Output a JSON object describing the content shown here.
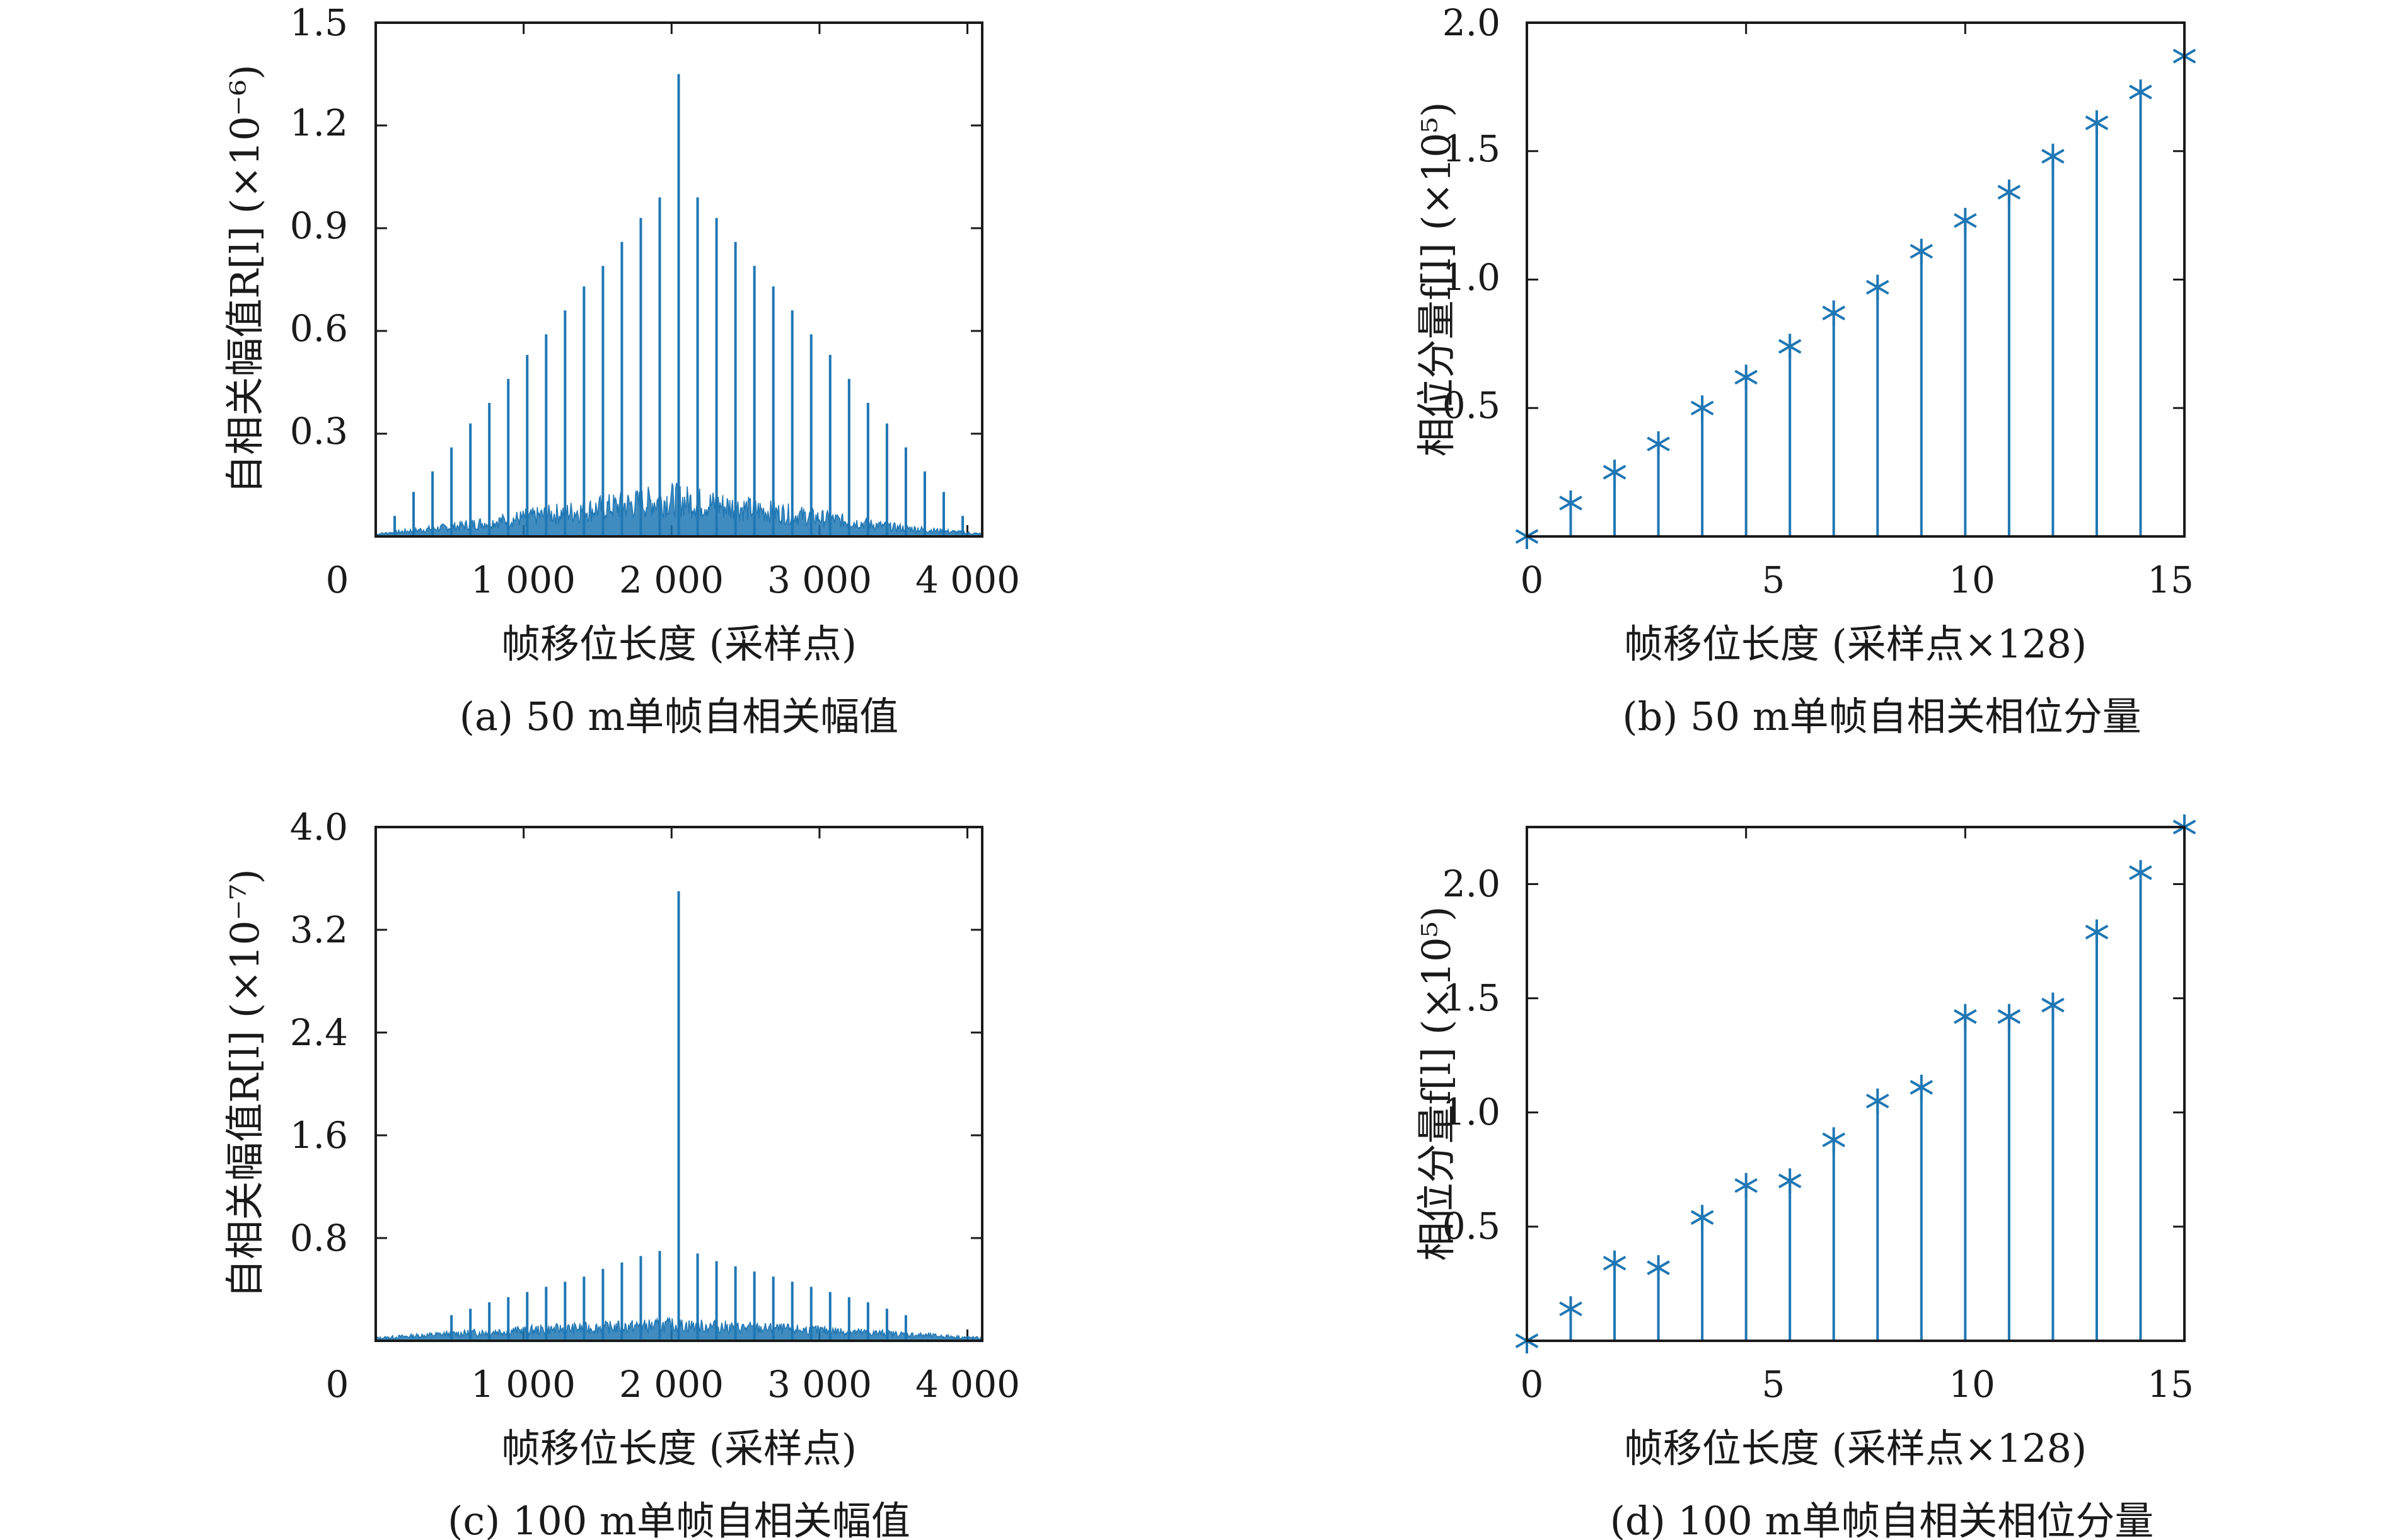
{
  "colors": {
    "series": "#1f77b4",
    "axis": "#1a1a1a"
  },
  "chart_data": [
    {
      "id": "a",
      "type": "stem",
      "caption": "(a) 50 m单帧自相关幅值",
      "xlabel": "帧移位长度 (采样点)",
      "ylabel": "自相关幅值R[l] (×10⁻⁶)",
      "origin_label": "0",
      "xlim": [
        0,
        4100
      ],
      "ylim": [
        0,
        1.5
      ],
      "xticks": [
        1000,
        2000,
        3000,
        4000
      ],
      "xtick_labels": [
        "1 000",
        "2 000",
        "3 000",
        "4 000"
      ],
      "yticks": [
        0.3,
        0.6,
        0.9,
        1.2,
        1.5
      ],
      "ytick_labels": [
        "0.3",
        "0.6",
        "0.9",
        "1.2",
        "1.5"
      ],
      "peaks": {
        "x": [
          128,
          256,
          384,
          512,
          640,
          768,
          896,
          1024,
          1152,
          1280,
          1408,
          1536,
          1664,
          1792,
          1920,
          2048,
          2176,
          2304,
          2432,
          2560,
          2688,
          2816,
          2944,
          3072,
          3200,
          3328,
          3456,
          3584,
          3712,
          3840,
          3968
        ],
        "y": [
          0.06,
          0.13,
          0.19,
          0.26,
          0.33,
          0.39,
          0.46,
          0.53,
          0.59,
          0.66,
          0.73,
          0.79,
          0.86,
          0.93,
          0.99,
          1.35,
          0.99,
          0.93,
          0.86,
          0.79,
          0.73,
          0.66,
          0.59,
          0.53,
          0.46,
          0.39,
          0.33,
          0.26,
          0.19,
          0.13,
          0.06
        ]
      },
      "background_envelope": {
        "x": [
          0,
          500,
          1000,
          1500,
          2000,
          2500,
          3000,
          3500,
          4100
        ],
        "y": [
          0.01,
          0.04,
          0.08,
          0.12,
          0.16,
          0.12,
          0.08,
          0.04,
          0.01
        ]
      }
    },
    {
      "id": "b",
      "type": "stem",
      "caption": "(b) 50 m单帧自相关相位分量",
      "xlabel": "帧移位长度 (采样点×128)",
      "ylabel": "相位分量f[l] (×10⁵)",
      "origin_label": "0",
      "marker": "asterisk",
      "xlim": [
        0,
        15
      ],
      "ylim": [
        0,
        2.0
      ],
      "xticks": [
        5,
        10,
        15
      ],
      "xtick_labels": [
        "5",
        "10",
        "15"
      ],
      "yticks": [
        0.5,
        1.0,
        1.5,
        2.0
      ],
      "ytick_labels": [
        "0.5",
        "1.0",
        "1.5",
        "2.0"
      ],
      "x": [
        0,
        1,
        2,
        3,
        4,
        5,
        6,
        7,
        8,
        9,
        10,
        11,
        12,
        13,
        14,
        15
      ],
      "y": [
        0.0,
        0.13,
        0.25,
        0.36,
        0.5,
        0.62,
        0.74,
        0.87,
        0.97,
        1.11,
        1.23,
        1.34,
        1.48,
        1.61,
        1.73,
        1.87
      ]
    },
    {
      "id": "c",
      "type": "stem",
      "caption": "(c) 100 m单帧自相关幅值",
      "xlabel": "帧移位长度 (采样点)",
      "ylabel": "自相关幅值R[l] (×10⁻⁷)",
      "origin_label": "0",
      "xlim": [
        0,
        4100
      ],
      "ylim": [
        0,
        4.0
      ],
      "xticks": [
        1000,
        2000,
        3000,
        4000
      ],
      "xtick_labels": [
        "1 000",
        "2 000",
        "3 000",
        "4 000"
      ],
      "yticks": [
        0.8,
        1.6,
        2.4,
        3.2,
        4.0
      ],
      "ytick_labels": [
        "0.8",
        "1.6",
        "2.4",
        "3.2",
        "4.0"
      ],
      "peaks": {
        "x": [
          512,
          640,
          768,
          896,
          1024,
          1152,
          1280,
          1408,
          1536,
          1664,
          1792,
          1920,
          2048,
          2176,
          2304,
          2432,
          2560,
          2688,
          2816,
          2944,
          3072,
          3200,
          3328,
          3456,
          3584
        ],
        "y": [
          0.2,
          0.25,
          0.3,
          0.34,
          0.38,
          0.42,
          0.46,
          0.5,
          0.56,
          0.61,
          0.66,
          0.7,
          3.5,
          0.68,
          0.62,
          0.58,
          0.54,
          0.5,
          0.46,
          0.42,
          0.38,
          0.34,
          0.3,
          0.25,
          0.2
        ]
      },
      "background_envelope": {
        "x": [
          0,
          500,
          1000,
          1500,
          2000,
          2500,
          3000,
          3500,
          4100
        ],
        "y": [
          0.03,
          0.08,
          0.12,
          0.15,
          0.18,
          0.15,
          0.12,
          0.08,
          0.03
        ]
      }
    },
    {
      "id": "d",
      "type": "stem",
      "caption": "(d) 100 m单帧自相关相位分量",
      "xlabel": "帧移位长度 (采样点×128)",
      "ylabel": "相位分量f[l] (×10⁵)",
      "origin_label": "0",
      "marker": "asterisk",
      "xlim": [
        0,
        15
      ],
      "ylim": [
        0,
        2.25
      ],
      "xticks": [
        5,
        10,
        15
      ],
      "xtick_labels": [
        "5",
        "10",
        "15"
      ],
      "yticks": [
        0.5,
        1.0,
        1.5,
        2.0
      ],
      "ytick_labels": [
        "0.5",
        "1.0",
        "1.5",
        "2.0"
      ],
      "x": [
        0,
        1,
        2,
        3,
        4,
        5,
        6,
        7,
        8,
        9,
        10,
        11,
        12,
        13,
        14,
        15
      ],
      "y": [
        0.0,
        0.14,
        0.34,
        0.32,
        0.54,
        0.68,
        0.7,
        0.88,
        1.05,
        1.11,
        1.42,
        1.42,
        1.47,
        1.79,
        2.05,
        2.25
      ]
    }
  ]
}
